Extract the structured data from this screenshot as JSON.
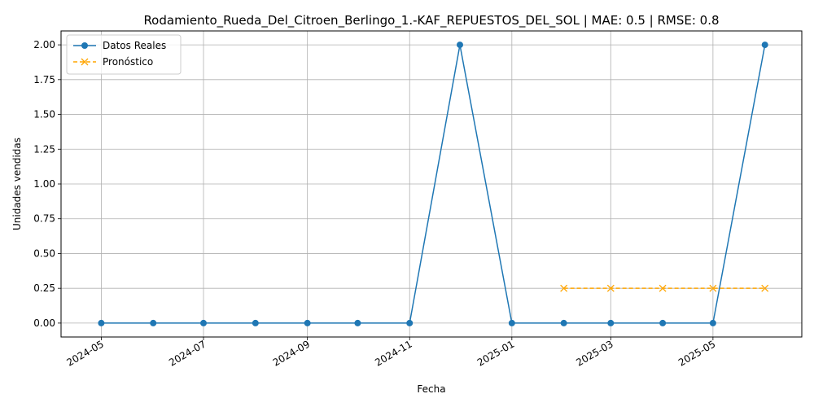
{
  "chart_data": {
    "type": "line",
    "title": "Rodamiento_Rueda_Del_Citroen_Berlingo_1.-KAF_REPUESTOS_DEL_SOL | MAE: 0.5 | RMSE: 0.8",
    "xlabel": "Fecha",
    "ylabel": "Unidades vendidas",
    "x_axis_type": "date",
    "xlim": [
      "2024-04-07",
      "2025-06-23"
    ],
    "ylim": [
      -0.1,
      2.1
    ],
    "x_ticks": [
      "2024-05",
      "2024-07",
      "2024-09",
      "2024-11",
      "2025-01",
      "2025-03",
      "2025-05"
    ],
    "y_ticks": [
      "0.00",
      "0.25",
      "0.50",
      "0.75",
      "1.00",
      "1.25",
      "1.50",
      "1.75",
      "2.00"
    ],
    "grid": true,
    "legend_position": "top-left",
    "series": [
      {
        "name": "Datos Reales",
        "color": "#1f77b4",
        "marker": "circle",
        "line_style": "solid",
        "points": [
          {
            "x": "2024-05-01",
            "y": 0
          },
          {
            "x": "2024-06-01",
            "y": 0
          },
          {
            "x": "2024-07-01",
            "y": 0
          },
          {
            "x": "2024-08-01",
            "y": 0
          },
          {
            "x": "2024-09-01",
            "y": 0
          },
          {
            "x": "2024-10-01",
            "y": 0
          },
          {
            "x": "2024-11-01",
            "y": 0
          },
          {
            "x": "2024-12-01",
            "y": 2
          },
          {
            "x": "2025-01-01",
            "y": 0
          },
          {
            "x": "2025-02-01",
            "y": 0
          },
          {
            "x": "2025-03-01",
            "y": 0
          },
          {
            "x": "2025-04-01",
            "y": 0
          },
          {
            "x": "2025-05-01",
            "y": 0
          },
          {
            "x": "2025-06-01",
            "y": 2
          }
        ]
      },
      {
        "name": "Pronóstico",
        "color": "#ffa500",
        "marker": "x",
        "line_style": "dashed",
        "points": [
          {
            "x": "2025-02-01",
            "y": 0.25
          },
          {
            "x": "2025-03-01",
            "y": 0.25
          },
          {
            "x": "2025-04-01",
            "y": 0.25
          },
          {
            "x": "2025-05-01",
            "y": 0.25
          },
          {
            "x": "2025-06-01",
            "y": 0.25
          }
        ]
      }
    ]
  }
}
